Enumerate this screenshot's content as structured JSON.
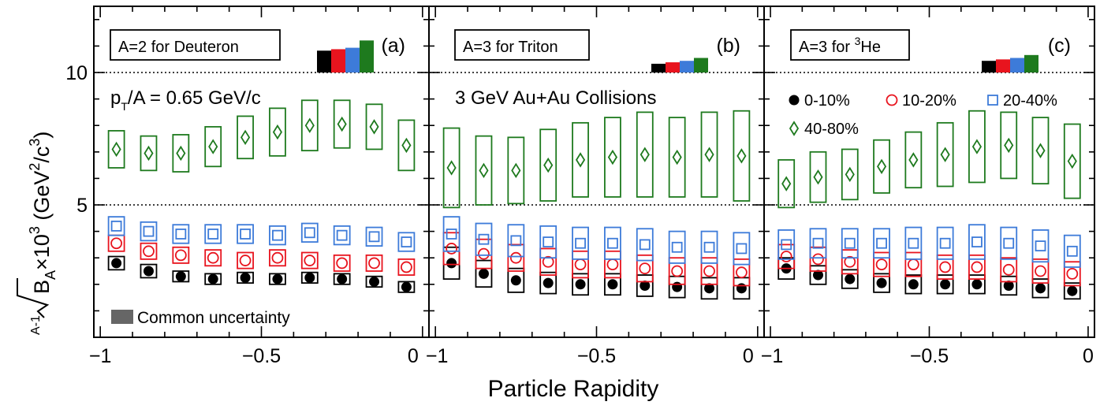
{
  "chart_data": {
    "type": "scatter",
    "y_axis_label": {
      "root_index": "A-1",
      "base": "B",
      "sub": "A",
      "mid": "×10",
      "sup1": "3",
      "open": " (GeV",
      "sup2": "2",
      "slash": "/c",
      "sup3": "3",
      "close": ")"
    },
    "x_axis_label": "Particle Rapidity",
    "ylim": [
      0,
      12.5
    ],
    "xlim": [
      -1.02,
      0.02
    ],
    "y_ticks": [
      "5",
      "10"
    ],
    "x_ticks": [
      "−1",
      "−0.5",
      "0"
    ],
    "reference_lines": [
      5,
      10
    ],
    "panel_titles": [
      "A=2 for Deuteron",
      "A=3 for Triton"
    ],
    "panel_c_title": {
      "prefix": "A=3 for ",
      "sup": "3",
      "suffix": "He"
    },
    "panel_letters": [
      "(a)",
      "(b)",
      "(c)"
    ],
    "annotation_pt": {
      "base": "p",
      "sub": "T",
      "rest": "/A = 0.65 GeV/c"
    },
    "annotation_system": "3 GeV Au+Au Collisions",
    "common_uncertainty_label": "Common uncertainty",
    "legend": [
      "0-10%",
      "10-20%",
      "20-40%",
      "40-80%"
    ],
    "colors": {
      "0-10%": "#000000",
      "10-20%": "#e8141e",
      "20-40%": "#3d7bd9",
      "40-80%": "#1e7a1e",
      "common": "#666666"
    },
    "x": [
      -0.95,
      -0.85,
      -0.75,
      -0.65,
      -0.55,
      -0.45,
      -0.35,
      -0.25,
      -0.15,
      -0.05
    ],
    "panels": [
      {
        "series": [
          {
            "name": "0-10%",
            "y": [
              2.8,
              2.5,
              2.3,
              2.2,
              2.25,
              2.2,
              2.25,
              2.2,
              2.1,
              1.9
            ],
            "sys": [
              0.25,
              0.25,
              0.2,
              0.2,
              0.2,
              0.2,
              0.2,
              0.2,
              0.2,
              0.2
            ]
          },
          {
            "name": "10-20%",
            "y": [
              3.55,
              3.25,
              3.1,
              3.0,
              2.9,
              3.0,
              2.9,
              2.8,
              2.8,
              2.65
            ],
            "sys": [
              0.3,
              0.3,
              0.3,
              0.3,
              0.3,
              0.3,
              0.3,
              0.3,
              0.3,
              0.3
            ]
          },
          {
            "name": "20-40%",
            "y": [
              4.2,
              4.0,
              3.9,
              3.9,
              3.9,
              3.85,
              3.95,
              3.85,
              3.8,
              3.6
            ],
            "sys": [
              0.35,
              0.35,
              0.35,
              0.35,
              0.35,
              0.35,
              0.35,
              0.35,
              0.35,
              0.35
            ]
          },
          {
            "name": "40-80%",
            "y": [
              7.1,
              6.95,
              6.95,
              7.2,
              7.55,
              7.75,
              8.0,
              8.05,
              7.95,
              7.25
            ],
            "sys": [
              0.7,
              0.65,
              0.7,
              0.75,
              0.8,
              0.9,
              0.95,
              0.9,
              0.85,
              0.95
            ]
          }
        ],
        "common": [
          1.5,
          1.6,
          1.7,
          2.2
        ]
      },
      {
        "series": [
          {
            "name": "0-10%",
            "y": [
              2.8,
              2.4,
              2.15,
              2.05,
              2.0,
              2.0,
              1.95,
              1.9,
              1.85,
              1.85
            ],
            "sys": [
              0.6,
              0.5,
              0.45,
              0.4,
              0.4,
              0.4,
              0.4,
              0.4,
              0.4,
              0.4
            ]
          },
          {
            "name": "10-20%",
            "y": [
              3.35,
              3.15,
              3.0,
              2.85,
              2.75,
              2.75,
              2.6,
              2.5,
              2.5,
              2.45
            ],
            "sys": [
              0.6,
              0.55,
              0.5,
              0.5,
              0.5,
              0.5,
              0.5,
              0.5,
              0.5,
              0.5
            ]
          },
          {
            "name": "20-40%",
            "y": [
              3.9,
              3.7,
              3.65,
              3.6,
              3.55,
              3.55,
              3.5,
              3.4,
              3.4,
              3.35
            ],
            "sys": [
              0.65,
              0.6,
              0.6,
              0.6,
              0.6,
              0.6,
              0.6,
              0.6,
              0.6,
              0.6
            ]
          },
          {
            "name": "40-80%",
            "y": [
              6.4,
              6.3,
              6.3,
              6.5,
              6.7,
              6.8,
              6.9,
              6.8,
              6.9,
              6.85
            ],
            "sys": [
              1.5,
              1.3,
              1.25,
              1.35,
              1.4,
              1.5,
              1.6,
              1.5,
              1.6,
              1.7
            ]
          }
        ],
        "common": [
          0.6,
          0.7,
          0.8,
          1.0
        ]
      },
      {
        "series": [
          {
            "name": "0-10%",
            "y": [
              2.6,
              2.35,
              2.2,
              2.05,
              2.0,
              2.0,
              2.0,
              1.95,
              1.85,
              1.75
            ],
            "sys": [
              0.4,
              0.35,
              0.35,
              0.35,
              0.35,
              0.35,
              0.35,
              0.35,
              0.35,
              0.3
            ]
          },
          {
            "name": "10-20%",
            "y": [
              3.05,
              2.95,
              2.85,
              2.75,
              2.75,
              2.65,
              2.65,
              2.55,
              2.5,
              2.4
            ],
            "sys": [
              0.45,
              0.45,
              0.45,
              0.45,
              0.45,
              0.45,
              0.45,
              0.45,
              0.45,
              0.45
            ]
          },
          {
            "name": "20-40%",
            "y": [
              3.5,
              3.55,
              3.55,
              3.55,
              3.55,
              3.55,
              3.6,
              3.55,
              3.45,
              3.25
            ],
            "sys": [
              0.55,
              0.55,
              0.55,
              0.55,
              0.6,
              0.6,
              0.65,
              0.6,
              0.6,
              0.6
            ]
          },
          {
            "name": "40-80%",
            "y": [
              5.8,
              6.05,
              6.15,
              6.45,
              6.7,
              6.9,
              7.2,
              7.25,
              7.05,
              6.65
            ],
            "sys": [
              0.9,
              0.95,
              0.95,
              1.0,
              1.05,
              1.2,
              1.35,
              1.25,
              1.25,
              1.4
            ]
          }
        ],
        "common": [
          0.8,
          0.9,
          1.0,
          1.2
        ]
      }
    ]
  }
}
